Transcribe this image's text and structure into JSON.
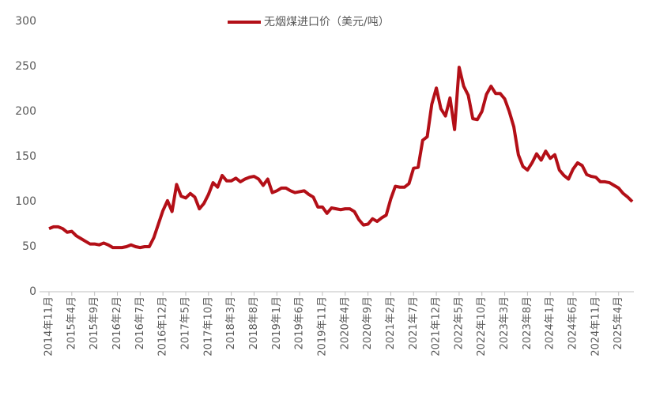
{
  "chart_data": {
    "type": "line",
    "categories": [
      "2014年11月",
      null,
      null,
      null,
      null,
      "2015年4月",
      null,
      null,
      null,
      null,
      "2015年9月",
      null,
      null,
      null,
      null,
      "2016年2月",
      null,
      null,
      null,
      null,
      "2016年7月",
      null,
      null,
      null,
      null,
      "2016年12月",
      null,
      null,
      null,
      null,
      "2017年5月",
      null,
      null,
      null,
      null,
      "2017年10月",
      null,
      null,
      null,
      null,
      "2018年3月",
      null,
      null,
      null,
      null,
      "2018年8月",
      null,
      null,
      null,
      null,
      "2019年1月",
      null,
      null,
      null,
      null,
      "2019年6月",
      null,
      null,
      null,
      null,
      "2019年11月",
      null,
      null,
      null,
      null,
      "2020年4月",
      null,
      null,
      null,
      null,
      "2020年9月",
      null,
      null,
      null,
      null,
      "2021年2月",
      null,
      null,
      null,
      null,
      "2021年7月",
      null,
      null,
      null,
      null,
      "2021年12月",
      null,
      null,
      null,
      null,
      "2022年5月",
      null,
      null,
      null,
      null,
      "2022年10月",
      null,
      null,
      null,
      null,
      "2023年3月",
      null,
      null,
      null,
      null,
      "2023年8月",
      null,
      null,
      null,
      null,
      "2024年1月",
      null,
      null,
      null,
      null,
      "2024年6月",
      null,
      null,
      null,
      null,
      "2024年11月",
      null,
      null,
      null,
      null,
      "2025年4月",
      null,
      null,
      null
    ],
    "series": [
      {
        "name": "无烟煤进口价（美元/吨）",
        "color": "#b30f17",
        "values": [
          70,
          72,
          72,
          70,
          66,
          67,
          62,
          59,
          56,
          53,
          53,
          52,
          54,
          52,
          49,
          49,
          49,
          50,
          52,
          50,
          49,
          50,
          50,
          60,
          75,
          90,
          101,
          89,
          119,
          106,
          104,
          109,
          105,
          92,
          98,
          108,
          121,
          116,
          129,
          123,
          123,
          126,
          122,
          125,
          127,
          128,
          125,
          118,
          125,
          110,
          112,
          115,
          115,
          112,
          110,
          111,
          112,
          108,
          105,
          94,
          94,
          87,
          93,
          92,
          91,
          92,
          92,
          89,
          80,
          74,
          75,
          81,
          78,
          82,
          85,
          103,
          117,
          116,
          116,
          120,
          137,
          138,
          168,
          172,
          208,
          226,
          203,
          195,
          215,
          180,
          249,
          228,
          218,
          192,
          191,
          200,
          219,
          228,
          220,
          220,
          214,
          200,
          183,
          152,
          139,
          135,
          143,
          153,
          146,
          156,
          148,
          152,
          135,
          129,
          125,
          136,
          143,
          140,
          130,
          128,
          127,
          122,
          122,
          121,
          118,
          115,
          109,
          105,
          100
        ]
      }
    ],
    "ylim": [
      0,
      300
    ],
    "yticks": [
      0,
      50,
      100,
      150,
      200,
      250,
      300
    ]
  }
}
